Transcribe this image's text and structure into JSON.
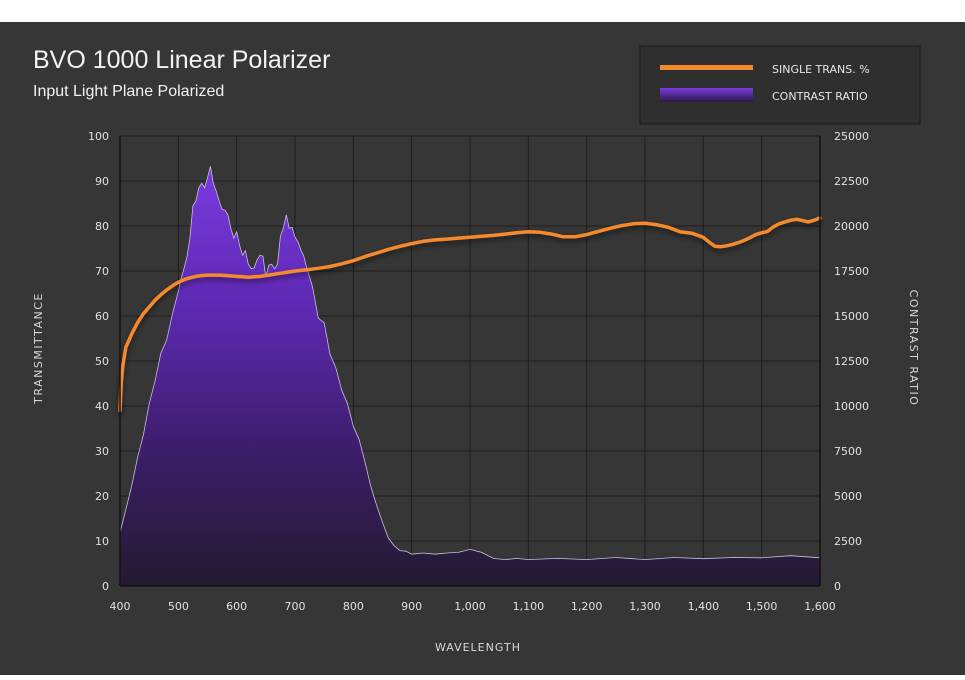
{
  "chart_data": {
    "type": "area",
    "title": "BVO 1000 Linear Polarizer",
    "subtitle": "Input Light Plane Polarized",
    "xlabel": "WAVELENGTH",
    "ylabel": "TRANSMITTANCE",
    "y2label": "CONTRAST RATIO",
    "xlim": [
      400,
      1600
    ],
    "ylim": [
      0,
      100
    ],
    "y2lim": [
      0,
      25000
    ],
    "x_ticks": [
      "400",
      "500",
      "600",
      "700",
      "800",
      "900",
      "1,000",
      "1,100",
      "1,200",
      "1,300",
      "1,400",
      "1,500",
      "1,600"
    ],
    "y_ticks": [
      "0",
      "10",
      "20",
      "30",
      "40",
      "50",
      "60",
      "70",
      "80",
      "90",
      "100"
    ],
    "y2_ticks": [
      "0",
      "2500",
      "5000",
      "7500",
      "10000",
      "12500",
      "15000",
      "17500",
      "20000",
      "22500",
      "25000"
    ],
    "grid": true,
    "legend_position": "top-right",
    "colors": {
      "transmission": "#f5892e",
      "contrast": "#6a2fc4",
      "background": "#363636",
      "grid": "#1e1e1e"
    },
    "series": [
      {
        "name": "SINGLE TRANS. %",
        "axis": "left",
        "x": [
          400,
          402,
          405,
          410,
          420,
          430,
          440,
          450,
          460,
          470,
          480,
          490,
          500,
          510,
          520,
          530,
          540,
          550,
          560,
          570,
          580,
          590,
          600,
          610,
          620,
          630,
          640,
          650,
          660,
          670,
          680,
          690,
          700,
          720,
          740,
          760,
          780,
          800,
          820,
          840,
          860,
          880,
          900,
          920,
          940,
          960,
          980,
          1000,
          1020,
          1040,
          1060,
          1080,
          1100,
          1120,
          1140,
          1160,
          1180,
          1200,
          1220,
          1240,
          1260,
          1280,
          1300,
          1320,
          1340,
          1360,
          1380,
          1400,
          1410,
          1420,
          1430,
          1440,
          1450,
          1460,
          1470,
          1480,
          1490,
          1500,
          1510,
          1520,
          1530,
          1540,
          1550,
          1560,
          1570,
          1580,
          1590,
          1600
        ],
        "values": [
          39,
          45,
          49,
          53,
          56,
          58.5,
          60.5,
          62,
          63.5,
          64.7,
          65.8,
          66.7,
          67.5,
          68.1,
          68.5,
          68.8,
          69,
          69.1,
          69.1,
          69.1,
          69,
          68.9,
          68.8,
          68.7,
          68.6,
          68.7,
          68.8,
          69,
          69.2,
          69.4,
          69.6,
          69.8,
          70,
          70.3,
          70.6,
          71,
          71.6,
          72.3,
          73.2,
          74,
          74.8,
          75.5,
          76.1,
          76.6,
          76.9,
          77.1,
          77.3,
          77.5,
          77.7,
          77.9,
          78.2,
          78.5,
          78.7,
          78.6,
          78.2,
          77.6,
          77.6,
          78.1,
          78.8,
          79.5,
          80.1,
          80.5,
          80.6,
          80.3,
          79.7,
          78.7,
          78.4,
          77.5,
          76.4,
          75.5,
          75.4,
          75.6,
          75.9,
          76.3,
          76.8,
          77.4,
          78.1,
          78.5,
          78.8,
          79.8,
          80.5,
          80.9,
          81.3,
          81.5,
          81.2,
          80.9,
          81.3,
          81.8
        ]
      },
      {
        "name": "CONTRAST RATIO",
        "axis": "right",
        "x": [
          400,
          410,
          420,
          430,
          440,
          450,
          460,
          470,
          480,
          490,
          500,
          505,
          510,
          515,
          520,
          525,
          530,
          535,
          540,
          545,
          550,
          555,
          560,
          565,
          570,
          575,
          580,
          585,
          590,
          595,
          600,
          605,
          610,
          615,
          620,
          625,
          630,
          635,
          640,
          645,
          650,
          655,
          660,
          665,
          670,
          675,
          680,
          685,
          690,
          695,
          700,
          705,
          710,
          715,
          720,
          730,
          740,
          750,
          760,
          770,
          780,
          790,
          800,
          810,
          820,
          830,
          840,
          850,
          860,
          870,
          880,
          890,
          900,
          920,
          940,
          960,
          980,
          1000,
          1020,
          1040,
          1060,
          1080,
          1100,
          1150,
          1200,
          1250,
          1300,
          1350,
          1400,
          1450,
          1500,
          1550,
          1600
        ],
        "values": [
          3000,
          4200,
          5600,
          7000,
          8500,
          10000,
          11500,
          12800,
          13800,
          15000,
          16500,
          17000,
          17800,
          18200,
          19500,
          21000,
          21500,
          22000,
          22500,
          22000,
          22800,
          23200,
          22500,
          21800,
          21500,
          20800,
          21000,
          20500,
          20000,
          19200,
          19800,
          18800,
          18500,
          18500,
          18000,
          17500,
          17800,
          18000,
          18500,
          18200,
          17300,
          17700,
          18000,
          17500,
          18000,
          19300,
          20000,
          20500,
          20000,
          19800,
          19500,
          19000,
          18800,
          18200,
          17800,
          16500,
          15000,
          14500,
          13000,
          12000,
          11000,
          10000,
          9000,
          8000,
          7000,
          5500,
          4500,
          3500,
          2700,
          2200,
          2000,
          1900,
          1800,
          1800,
          1800,
          1800,
          1900,
          2000,
          1900,
          1500,
          1500,
          1500,
          1500,
          1500,
          1500,
          1550,
          1500,
          1550,
          1550,
          1550,
          1600,
          1650,
          1600
        ]
      }
    ]
  }
}
